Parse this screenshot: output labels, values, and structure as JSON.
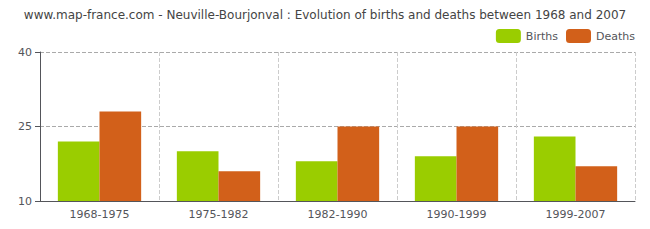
{
  "chart_data": {
    "type": "bar",
    "title": "www.map-france.com - Neuville-Bourjonval : Evolution of births and deaths between 1968 and 2007",
    "categories": [
      "1968-1975",
      "1975-1982",
      "1982-1990",
      "1990-1999",
      "1999-2007"
    ],
    "series": [
      {
        "name": "Births",
        "color": "#9acd00",
        "values": [
          22,
          20,
          18,
          19,
          23
        ]
      },
      {
        "name": "Deaths",
        "color": "#d2601a",
        "values": [
          28,
          16,
          25,
          25,
          17
        ]
      }
    ],
    "ylim": [
      10,
      40
    ],
    "yticks": [
      10,
      25,
      40
    ],
    "grid": true,
    "legend": "upper right"
  }
}
